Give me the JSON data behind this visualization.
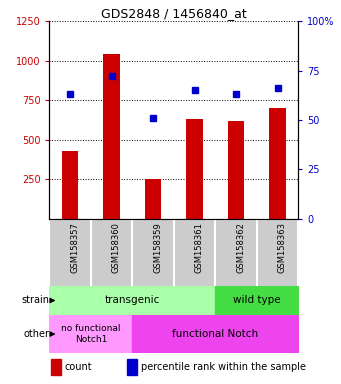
{
  "title": "GDS2848 / 1456840_at",
  "samples": [
    "GSM158357",
    "GSM158360",
    "GSM158359",
    "GSM158361",
    "GSM158362",
    "GSM158363"
  ],
  "counts": [
    430,
    1040,
    255,
    630,
    620,
    700
  ],
  "percentiles": [
    63,
    72,
    51,
    65,
    63,
    66
  ],
  "ylim_left": [
    0,
    1250
  ],
  "ylim_right": [
    0,
    100
  ],
  "yticks_left": [
    250,
    500,
    750,
    1000,
    1250
  ],
  "yticks_right": [
    0,
    25,
    50,
    75,
    100
  ],
  "bar_color": "#cc0000",
  "dot_color": "#0000cc",
  "left_axis_color": "#cc0000",
  "right_axis_color": "#0000cc",
  "legend_count_label": "count",
  "legend_pct_label": "percentile rank within the sample",
  "row_label_strain": "strain",
  "row_label_other": "other",
  "background_color": "#ffffff",
  "tick_label_area_color": "#cccccc",
  "transgenic_color": "#aaffaa",
  "wildtype_color": "#44dd44",
  "nofunc_color": "#ff99ff",
  "func_color": "#ee44ee"
}
